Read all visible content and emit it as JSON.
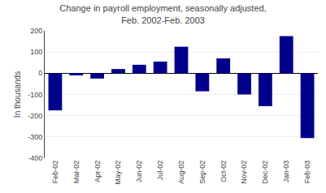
{
  "chart_data": {
    "type": "bar",
    "title": "Change in payroll employment, seasonally adjusted,\nFeb. 2002-Feb. 2003",
    "ylabel": "In thousands",
    "categories": [
      "Feb-02",
      "Mar-02",
      "Apr-02",
      "May-02",
      "Jun-02",
      "Jul-02",
      "Aug-02",
      "Sep-02",
      "Oct-02",
      "Nov-02",
      "Dec-02",
      "Jan-03",
      "Feb-03"
    ],
    "values": [
      -175,
      -10,
      -25,
      20,
      40,
      55,
      125,
      -85,
      70,
      -100,
      -155,
      175,
      -305
    ],
    "color": "#00008B",
    "ylim": [
      -400,
      200
    ],
    "yticks": [
      -400,
      -300,
      -200,
      -100,
      0,
      100,
      200
    ],
    "grid": true
  }
}
